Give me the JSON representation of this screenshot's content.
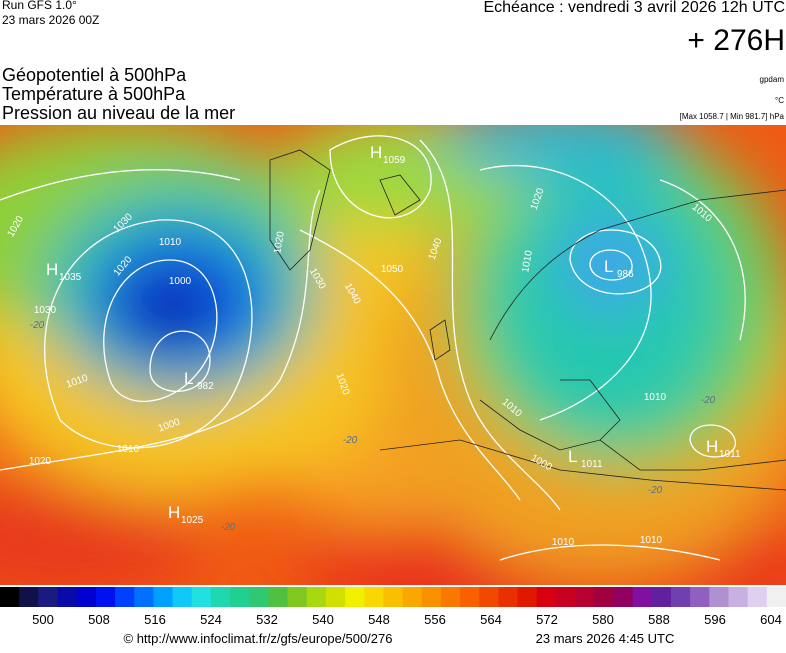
{
  "header": {
    "run": "Run GFS 1.0°",
    "run_date": "23 mars 2026 00Z",
    "valid": "Echéance : vendredi 3 avril 2026 12h UTC",
    "lead": "+ 276H"
  },
  "titles": [
    "Géopotentiel à 500hPa",
    "Température à 500hPa",
    "Pression au niveau de la mer"
  ],
  "units": {
    "geopotential": "gpdam",
    "temperature": "°C",
    "pressure_range": "[Max 1058.7 | Min 981.7] hPa"
  },
  "centers": [
    {
      "letter": "H",
      "value": 1059
    },
    {
      "letter": "L",
      "value": 986
    },
    {
      "letter": "H",
      "value": 1035
    },
    {
      "letter": "L",
      "value": 982
    },
    {
      "letter": "H",
      "value": 1025
    },
    {
      "letter": "L",
      "value": 1011
    },
    {
      "letter": "H",
      "value": 1011
    }
  ],
  "isobar_labels": [
    1020,
    1030,
    1020,
    1010,
    1000,
    1030,
    1010,
    1000,
    1010,
    1020,
    1020,
    1030,
    1040,
    1050,
    1040,
    1020,
    1010,
    1010,
    1010,
    1000,
    1010,
    1010,
    1010,
    1020
  ],
  "temperature_labels": [
    -20,
    -20,
    -20,
    -20,
    -20
  ],
  "colorbar": {
    "labels": [
      500,
      508,
      516,
      524,
      532,
      540,
      548,
      556,
      564,
      572,
      580,
      588,
      596,
      604
    ]
  },
  "footer": {
    "source": "© http://www.infoclimat.fr/z/gfs/europe/500/276",
    "generated": "23 mars 2026  4:45 UTC"
  }
}
